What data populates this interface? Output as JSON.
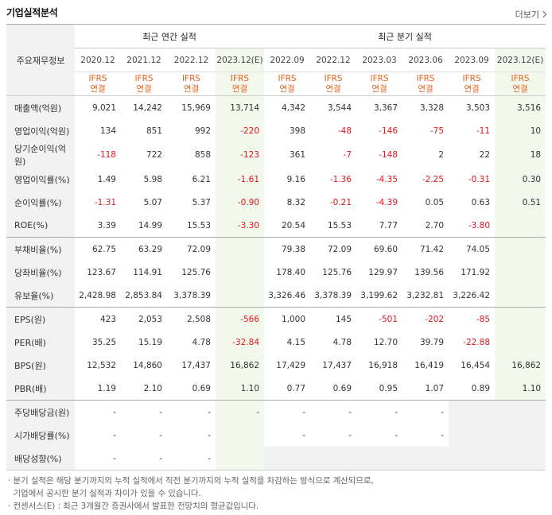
{
  "header": {
    "title": "기업실적분석",
    "more_label": "더보기"
  },
  "table": {
    "label_col": "주요재무정보",
    "group_annual": "최근 연간 실적",
    "group_quarter": "최근 분기 실적",
    "periods": [
      "2020.12",
      "2021.12",
      "2022.12",
      "2023.12(E)",
      "2022.09",
      "2022.12",
      "2023.03",
      "2023.06",
      "2023.09",
      "2023.12(E)"
    ],
    "ifrs_top": "IFRS",
    "ifrs_bottom": "연결",
    "rows": [
      {
        "label": "매출액(억원)",
        "values": [
          "9,021",
          "14,242",
          "15,969",
          "13,714",
          "4,342",
          "3,544",
          "3,367",
          "3,328",
          "3,503",
          "3,516"
        ]
      },
      {
        "label": "영업이익(억원)",
        "values": [
          "134",
          "851",
          "992",
          "-220",
          "398",
          "-48",
          "-146",
          "-75",
          "-11",
          "10"
        ]
      },
      {
        "label": "당기순이익(억원)",
        "values": [
          "-118",
          "722",
          "858",
          "-123",
          "361",
          "-7",
          "-148",
          "2",
          "22",
          "18"
        ]
      },
      {
        "label": "영업이익률(%)",
        "values": [
          "1.49",
          "5.98",
          "6.21",
          "-1.61",
          "9.16",
          "-1.36",
          "-4.35",
          "-2.25",
          "-0.31",
          "0.30"
        ]
      },
      {
        "label": "순이익률(%)",
        "values": [
          "-1.31",
          "5.07",
          "5.37",
          "-0.90",
          "8.32",
          "-0.21",
          "-4.39",
          "0.05",
          "0.63",
          "0.51"
        ]
      },
      {
        "label": "ROE(%)",
        "values": [
          "3.39",
          "14.99",
          "15.53",
          "-3.30",
          "20.54",
          "15.53",
          "7.77",
          "2.70",
          "-3.80",
          ""
        ]
      },
      {
        "label": "부채비율(%)",
        "values": [
          "62.75",
          "63.29",
          "72.09",
          "",
          "79.38",
          "72.09",
          "69.60",
          "71.42",
          "74.05",
          ""
        ]
      },
      {
        "label": "당좌비율(%)",
        "values": [
          "123.67",
          "114.91",
          "125.76",
          "",
          "178.40",
          "125.76",
          "129.97",
          "139.56",
          "171.92",
          ""
        ]
      },
      {
        "label": "유보율(%)",
        "values": [
          "2,428.98",
          "2,853.84",
          "3,378.39",
          "",
          "3,326.46",
          "3,378.39",
          "3,199.62",
          "3,232.81",
          "3,226.42",
          ""
        ]
      },
      {
        "label": "EPS(원)",
        "values": [
          "423",
          "2,053",
          "2,508",
          "-566",
          "1,000",
          "145",
          "-501",
          "-202",
          "-85",
          ""
        ]
      },
      {
        "label": "PER(배)",
        "values": [
          "35.25",
          "15.19",
          "4.78",
          "-32.84",
          "4.15",
          "4.78",
          "12.70",
          "39.79",
          "-22.88",
          ""
        ]
      },
      {
        "label": "BPS(원)",
        "values": [
          "12,532",
          "14,860",
          "17,437",
          "16,862",
          "17,429",
          "17,437",
          "16,918",
          "16,419",
          "16,454",
          "16,862"
        ]
      },
      {
        "label": "PBR(배)",
        "values": [
          "1.19",
          "2.10",
          "0.69",
          "1.10",
          "0.77",
          "0.69",
          "0.95",
          "1.07",
          "0.89",
          "1.10"
        ]
      },
      {
        "label": "주당배당금(원)",
        "values": [
          "-",
          "-",
          "-",
          "-",
          "-",
          "-",
          "-",
          "-",
          "",
          ""
        ]
      },
      {
        "label": "시가배당률(%)",
        "values": [
          "-",
          "-",
          "-",
          "",
          "-",
          "-",
          "-",
          "-",
          "",
          ""
        ]
      },
      {
        "label": "배당성향(%)",
        "values": [
          "-",
          "-",
          "-",
          "",
          "",
          "",
          "",
          "",
          "",
          ""
        ]
      }
    ]
  },
  "notes": [
    "· 분기 실적은 해당 분기까지의 누적 실적에서 직전 분기까지의 누적 실적을 차감하는 방식으로 계산되므로,",
    "  기업에서 공시한 분기 실적과 차이가 있을 수 있습니다.",
    "· 컨센서스(E) : 최근 3개월간 증권사에서 발표한 전망치의 평균값입니다."
  ],
  "colors": {
    "negative": "#e0161d",
    "ifrs": "#e8621b",
    "estimate_bg": "#f2f9ec",
    "header_bg": "#f2f2f2"
  }
}
